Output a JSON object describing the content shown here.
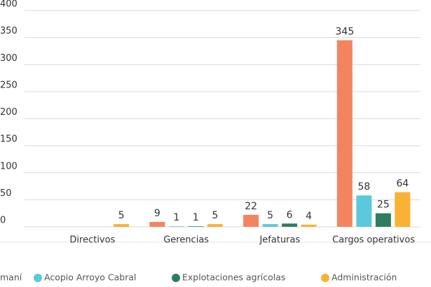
{
  "chart_data": {
    "type": "bar",
    "categories": [
      "Directivos",
      "Gerencias",
      "Jefaturas",
      "Cargos operativos"
    ],
    "series": [
      {
        "name": "maní",
        "color": "#f4845f",
        "values": [
          null,
          9,
          22,
          345
        ]
      },
      {
        "name": "Acopio Arroyo Cabral",
        "color": "#5bc8dc",
        "values": [
          null,
          1,
          5,
          58
        ]
      },
      {
        "name": "Explotaciones agrícolas",
        "color": "#2e7d5e",
        "values": [
          null,
          1,
          6,
          25
        ]
      },
      {
        "name": "Administración",
        "color": "#f9b233",
        "values": [
          5,
          5,
          4,
          64
        ]
      }
    ],
    "ylim": [
      0,
      400
    ],
    "yticks": [
      0,
      50,
      100,
      150,
      200,
      250,
      300,
      350,
      400
    ],
    "grid": true,
    "legend": "bottom"
  }
}
